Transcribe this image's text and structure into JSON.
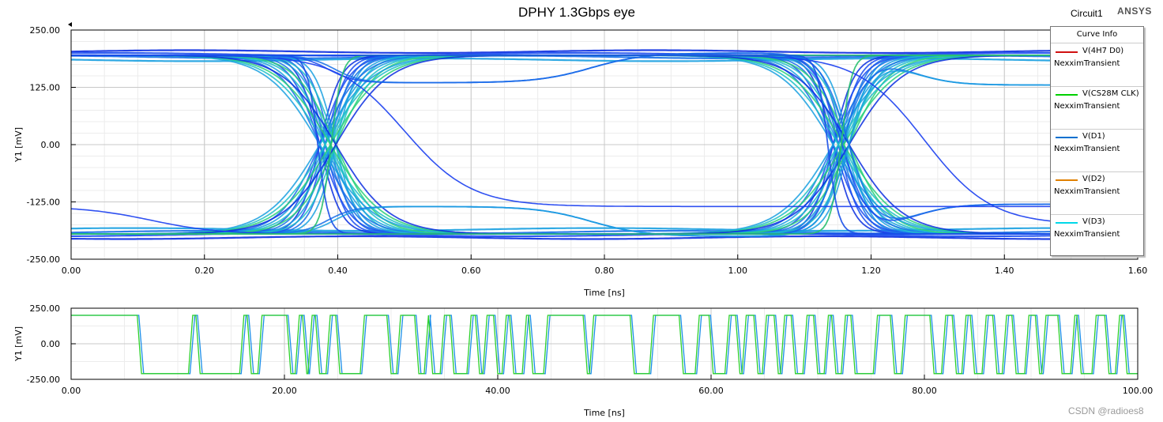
{
  "header": {
    "title": "DPHY 1.3Gbps eye",
    "circuit": "Circuit1",
    "brand": "ANSYS"
  },
  "legend": {
    "title": "Curve Info",
    "entries": [
      {
        "name": "V(4H7 D0)",
        "solution": "NexximTransient",
        "color": "#d01010"
      },
      {
        "name": "V(CS28M CLK)",
        "solution": "NexximTransient",
        "color": "#00d000"
      },
      {
        "name": "V(D1)",
        "solution": "NexximTransient",
        "color": "#0070d0"
      },
      {
        "name": "V(D2)",
        "solution": "NexximTransient",
        "color": "#e08000"
      },
      {
        "name": "V(D3)",
        "solution": "NexximTransient",
        "color": "#00d8e8"
      }
    ]
  },
  "watermark": "CSDN @radioes8",
  "chart_data": [
    {
      "type": "line",
      "name": "eye-diagram",
      "title": "DPHY 1.3Gbps eye",
      "xlabel": "Time [ns]",
      "ylabel": "Y1 [mV]",
      "xlim": [
        0,
        1.6
      ],
      "ylim": [
        -250,
        250
      ],
      "x_ticks": [
        "0.00",
        "0.20",
        "0.40",
        "0.60",
        "0.80",
        "1.00",
        "1.20",
        "1.40",
        "1.60"
      ],
      "y_ticks": [
        "250.00",
        "125.00",
        "0.00",
        "-125.00",
        "-250.00"
      ],
      "grid": true,
      "legend_position": "top-right",
      "levels": {
        "high": 195,
        "low": -195,
        "mid_high": 135,
        "mid_low": -135
      },
      "crossings": [
        0.385,
        1.155
      ],
      "overshoot_traces": [
        {
          "start": 0.32,
          "end": 0.46
        },
        {
          "start": 1.08,
          "end": 1.23
        }
      ]
    },
    {
      "type": "line",
      "name": "transient-waveform",
      "xlabel": "Time [ns]",
      "ylabel": "Y1 [mV]",
      "xlim": [
        0,
        100
      ],
      "ylim": [
        -250,
        250
      ],
      "x_ticks": [
        "0.00",
        "20.00",
        "40.00",
        "60.00",
        "80.00",
        "100.00"
      ],
      "y_ticks": [
        "250.00",
        "0.00",
        "-250.00"
      ],
      "grid": true,
      "high_mv": 200,
      "low_mv": -210,
      "edges_ns": [
        6.2,
        11.0,
        11.7,
        15.8,
        16.5,
        17.5,
        20.2,
        21.0,
        21.7,
        22.2,
        22.9,
        23.9,
        24.8,
        27.1,
        29.6,
        30.5,
        32.2,
        33.1,
        33.5,
        34.6,
        35.5,
        37.1,
        37.9,
        38.6,
        39.6,
        40.4,
        41.1,
        42.3,
        42.9,
        44.3,
        48.0,
        48.6,
        52.4,
        54.2,
        57.0,
        58.5,
        59.8,
        61.3,
        62.3,
        62.9,
        64.0,
        64.8,
        65.9,
        66.5,
        67.5,
        68.6,
        69.6,
        70.6,
        71.3,
        72.2,
        73.1,
        75.2,
        76.8,
        77.8,
        80.5,
        81.6,
        82.6,
        83.5,
        84.3,
        85.4,
        86.4,
        87.3,
        88.2,
        89.4,
        90.4,
        91.0,
        92.5,
        93.7,
        94.3,
        95.7,
        96.9,
        97.9,
        98.6
      ]
    }
  ]
}
